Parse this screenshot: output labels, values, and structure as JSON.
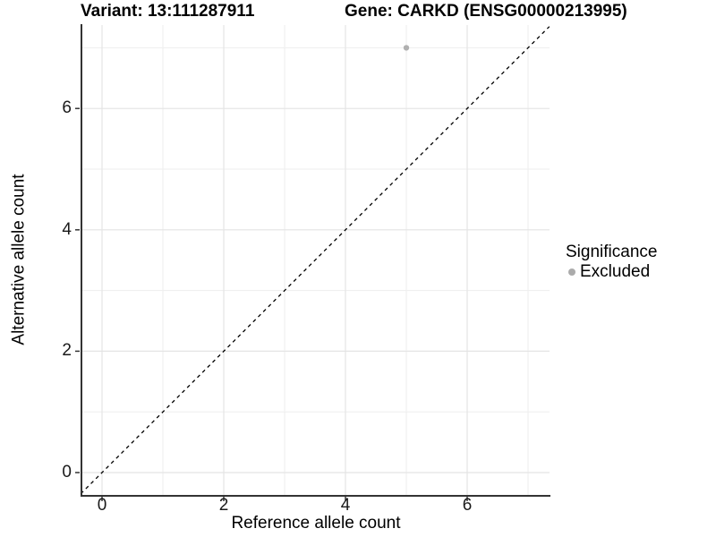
{
  "figure": {
    "title_left": "Variant: 13:111287911",
    "title_right": "Gene: CARKD (ENSG00000213995)"
  },
  "chart_data": {
    "type": "scatter",
    "title_parts": [
      "Variant: 13:111287911",
      "Gene: CARKD (ENSG00000213995)"
    ],
    "xlabel": "Reference allele count",
    "ylabel": "Alternative allele count",
    "xlim": [
      -0.35,
      7.35
    ],
    "ylim": [
      -0.35,
      7.35
    ],
    "x_major_ticks": [
      0,
      2,
      4,
      6
    ],
    "y_major_ticks": [
      0,
      2,
      4,
      6
    ],
    "major_gridlines": [
      0,
      2,
      4,
      6
    ],
    "minor_gridlines": [
      1,
      3,
      5,
      7
    ],
    "grid": true,
    "points": [
      {
        "x": 5,
        "y": 7,
        "significance": "Excluded"
      }
    ],
    "reference_line": {
      "type": "identity",
      "slope": 1,
      "intercept": 0,
      "style": "dashed"
    },
    "legend": {
      "title": "Significance",
      "position": "right",
      "entries": [
        {
          "label": "Excluded",
          "marker": "circle",
          "color": "#ababab"
        }
      ]
    }
  },
  "colors": {
    "background": "#ffffff",
    "panel_background": "#ffffff",
    "grid_major": "#e4e4e4",
    "grid_minor": "#eeeeee",
    "axis_line": "#333333",
    "tick_mark": "#333333",
    "dashed_line": "#000000",
    "point": "#b0b0b0",
    "title_text": "#000000",
    "tick_text": "#1a1a1a"
  }
}
